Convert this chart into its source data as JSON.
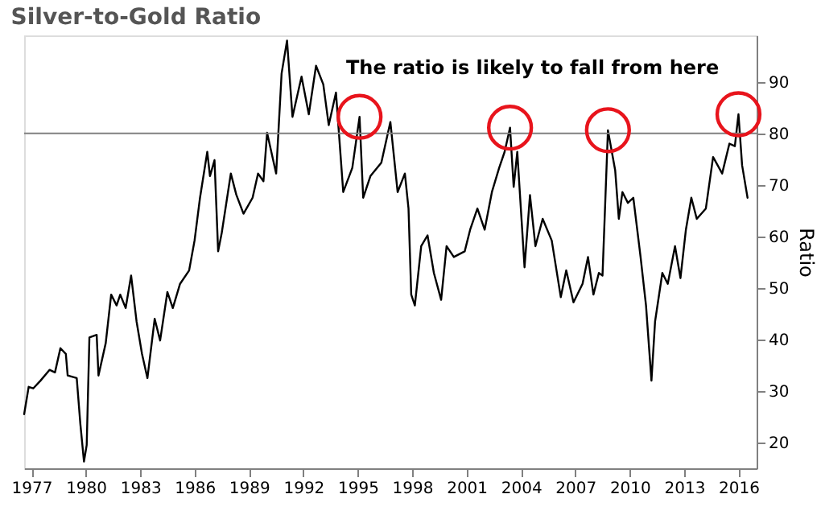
{
  "chart_data": {
    "type": "line",
    "title": "Silver-to-Gold Ratio",
    "ylabel": "Ratio",
    "annotations": [
      "The ratio is likely to fall from here"
    ],
    "x": [
      1976.6,
      1976.85,
      1977.1,
      1977.5,
      1978.0,
      1978.3,
      1978.6,
      1978.9,
      1979.0,
      1979.5,
      1979.7,
      1979.9,
      1980.05,
      1980.2,
      1980.6,
      1980.7,
      1981.1,
      1981.4,
      1981.7,
      1981.9,
      1982.2,
      1982.5,
      1982.8,
      1983.1,
      1983.4,
      1983.8,
      1984.1,
      1984.5,
      1984.8,
      1985.2,
      1985.7,
      1986.0,
      1986.3,
      1986.7,
      1986.85,
      1987.1,
      1987.3,
      1987.5,
      1988.0,
      1988.3,
      1988.7,
      1989.2,
      1989.5,
      1989.8,
      1990.0,
      1990.5,
      1990.8,
      1991.1,
      1991.4,
      1991.9,
      1992.3,
      1992.7,
      1993.1,
      1993.4,
      1993.8,
      1994.2,
      1994.7,
      1995.1,
      1995.3,
      1995.7,
      1996.3,
      1996.8,
      1997.2,
      1997.6,
      1997.8,
      1997.95,
      1998.15,
      1998.5,
      1998.85,
      1999.2,
      1999.6,
      1999.9,
      2000.3,
      2000.9,
      2001.2,
      2001.6,
      2002.0,
      2002.4,
      2002.8,
      2003.1,
      2003.4,
      2003.6,
      2003.8,
      2004.2,
      2004.5,
      2004.8,
      2005.2,
      2005.7,
      2006.2,
      2006.5,
      2006.9,
      2007.4,
      2007.7,
      2008.0,
      2008.3,
      2008.5,
      2008.8,
      2009.2,
      2009.4,
      2009.6,
      2009.9,
      2010.2,
      2010.6,
      2010.9,
      2011.2,
      2011.4,
      2011.8,
      2012.1,
      2012.5,
      2012.8,
      2013.1,
      2013.4,
      2013.7,
      2014.2,
      2014.6,
      2015.1,
      2015.5,
      2015.8,
      2016.0,
      2016.2,
      2016.5
    ],
    "series": [
      {
        "color": "#000000",
        "values": [
          25.5,
          30.8,
          30.5,
          32,
          34.1,
          33.6,
          38.3,
          37.2,
          33,
          32.5,
          23.6,
          16.3,
          19.5,
          40.4,
          40.9,
          33,
          39.3,
          48.7,
          46.6,
          48.7,
          46.1,
          52.4,
          43.5,
          37.2,
          32.5,
          44,
          39.8,
          49.2,
          46.1,
          50.8,
          53.4,
          59.2,
          67.5,
          76.4,
          71.7,
          74.8,
          57.1,
          60.7,
          72.2,
          68.1,
          64.4,
          67.5,
          72.2,
          70.7,
          80.1,
          72.2,
          91.6,
          98,
          83.2,
          91,
          83.7,
          93.1,
          89.5,
          81.6,
          87.9,
          68.6,
          73.3,
          83.2,
          67.5,
          71.7,
          74.3,
          82.2,
          68.6,
          72.2,
          65.4,
          48.7,
          46.6,
          58.1,
          60.2,
          52.9,
          47.7,
          58.1,
          56,
          57.1,
          61.3,
          65.4,
          61.3,
          68.6,
          73.3,
          76.4,
          81.1,
          69.6,
          76.4,
          54,
          68,
          58.1,
          63.4,
          59.2,
          48.2,
          53.4,
          47.2,
          50.8,
          56,
          48.7,
          52.9,
          52.4,
          80.6,
          72.8,
          63.4,
          68.6,
          66.5,
          67.5,
          56,
          46.6,
          32,
          43.5,
          52.9,
          50.8,
          58.1,
          51.9,
          61.3,
          67.5,
          63.4,
          65.4,
          75.4,
          72.2,
          78,
          77.5,
          83.7,
          73.8,
          67.5
        ]
      }
    ],
    "xlim": [
      1976.6,
      2017
    ],
    "xticks": [
      1977,
      1980,
      1983,
      1986,
      1989,
      1992,
      1995,
      1998,
      2001,
      2004,
      2007,
      2010,
      2013,
      2016
    ],
    "ylim": [
      15,
      99
    ],
    "yticks": [
      20,
      30,
      40,
      50,
      60,
      70,
      80,
      90
    ],
    "ref_lines": [
      {
        "axis": "y",
        "value": 80,
        "color": "#808080"
      }
    ],
    "grid": false,
    "marker": "none",
    "line_style": "solid"
  }
}
